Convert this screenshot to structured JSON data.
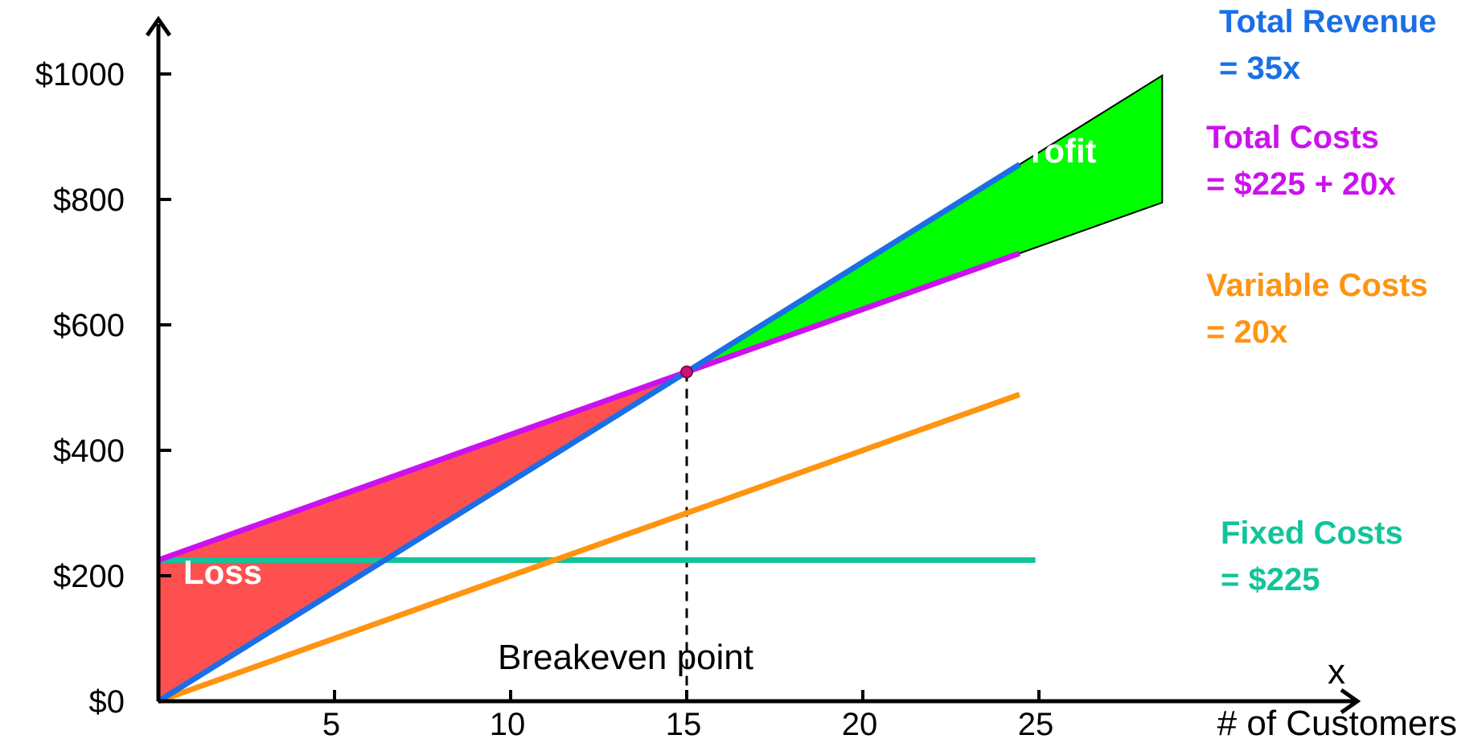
{
  "chart_data": {
    "type": "line",
    "title": "",
    "xlabel": "# of Customers",
    "x_axis_symbol": "x",
    "ylabel": "",
    "xlim": [
      0,
      30
    ],
    "ylim": [
      0,
      1100
    ],
    "x_ticks": [
      5,
      10,
      15,
      20,
      25
    ],
    "x_tick_labels": [
      "5",
      "10",
      "15",
      "20",
      "25"
    ],
    "y_ticks": [
      0,
      200,
      400,
      600,
      800,
      1000
    ],
    "y_tick_labels": [
      "$0",
      "$200",
      "$400",
      "$600",
      "$800",
      "$1000"
    ],
    "grid": false,
    "series": [
      {
        "id": "revenue",
        "label_line1": "Total Revenue",
        "label_line2": "= 35x",
        "color": "#1a6fe6",
        "points": [
          [
            0,
            0
          ],
          [
            29,
            1015
          ]
        ]
      },
      {
        "id": "total_costs",
        "label_line1": "Total Costs",
        "label_line2": "= $225 + 20x",
        "color": "#cc11ee",
        "points": [
          [
            0,
            225
          ],
          [
            29,
            805
          ]
        ]
      },
      {
        "id": "variable_costs",
        "label_line1": "Variable Costs",
        "label_line2": "= 20x",
        "color": "#ff9410",
        "points": [
          [
            0,
            0
          ],
          [
            29,
            580
          ]
        ]
      },
      {
        "id": "fixed_costs",
        "label_line1": "Fixed Costs",
        "label_line2": "= $225",
        "color": "#11c49a",
        "points": [
          [
            0,
            225
          ],
          [
            29,
            225
          ]
        ]
      }
    ],
    "regions": [
      {
        "id": "loss",
        "label": "Loss",
        "color": "#ff5050",
        "x_range": [
          0,
          15
        ]
      },
      {
        "id": "profit",
        "label": "Profit",
        "color": "#00ff00",
        "x_range": [
          15,
          28.5
        ]
      }
    ],
    "breakeven": {
      "x": 15,
      "y": 525,
      "label": "Breakeven point",
      "marker_color": "#cc1177"
    }
  }
}
